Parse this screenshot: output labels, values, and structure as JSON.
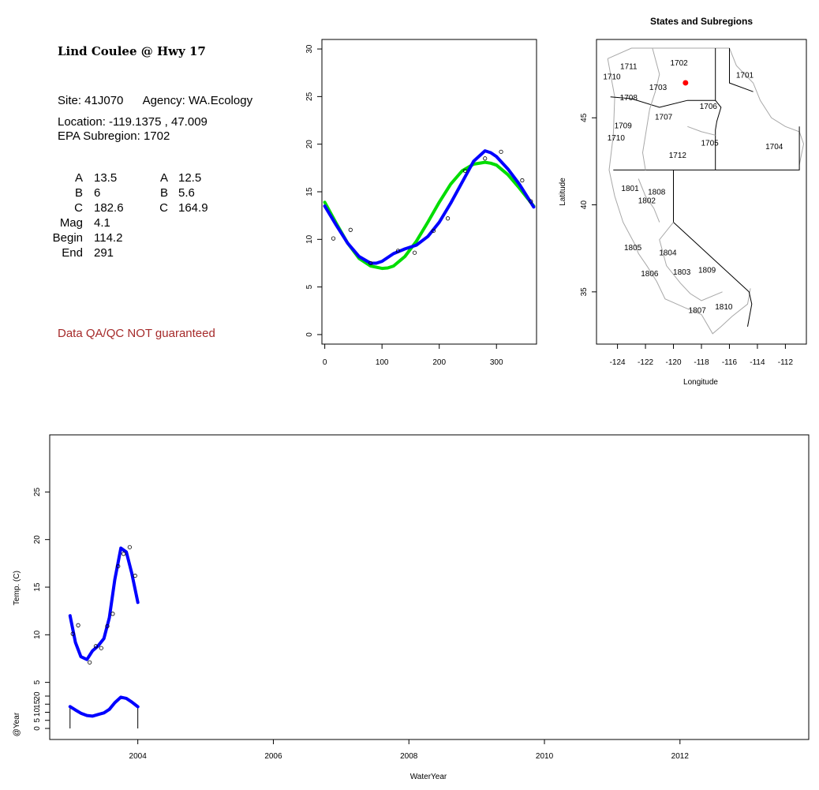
{
  "site": {
    "title": "Lind Coulee @ Hwy 17",
    "site_line": "Site: 41J070      Agency: WA.Ecology",
    "location_line": "Location: -119.1375 , 47.009",
    "subregion_line": "EPA Subregion: 1702",
    "params": {
      "labels": [
        "A",
        "B",
        "C",
        "Mag",
        "Begin",
        "End"
      ],
      "col1": [
        "13.5",
        "6",
        "182.6",
        "4.1",
        "114.2",
        "291"
      ],
      "labels2": [
        "A",
        "B",
        "C"
      ],
      "col2": [
        "12.5",
        "5.6",
        "164.9"
      ]
    },
    "qa_note": "Data QA/QC NOT guaranteed"
  },
  "chart_data": [
    {
      "type": "line",
      "xlim": [
        -5,
        370
      ],
      "ylim": [
        -1,
        31
      ],
      "xticks": [
        0,
        100,
        200,
        300
      ],
      "yticks": [
        0,
        5,
        10,
        15,
        20,
        25,
        30
      ],
      "points": {
        "x": [
          15,
          45,
          80,
          128,
          157,
          190,
          215,
          245,
          280,
          308,
          345,
          360
        ],
        "y": [
          10.1,
          11.0,
          7.5,
          8.8,
          8.6,
          10.9,
          12.2,
          17.2,
          18.5,
          19.2,
          16.2,
          14.0
        ]
      },
      "series": [
        {
          "name": "",
          "color": "#00dd00",
          "x": [
            0,
            20,
            40,
            60,
            80,
            100,
            110,
            120,
            140,
            160,
            180,
            200,
            220,
            240,
            260,
            280,
            290,
            300,
            320,
            340,
            365
          ],
          "y": [
            13.9,
            11.7,
            9.6,
            8.0,
            7.2,
            6.95,
            7.0,
            7.2,
            8.2,
            9.8,
            11.8,
            13.9,
            15.8,
            17.2,
            17.9,
            18.1,
            18.0,
            17.8,
            16.8,
            15.4,
            13.5
          ]
        },
        {
          "name": "",
          "color": "#0000ff",
          "x": [
            0,
            20,
            40,
            60,
            80,
            90,
            100,
            120,
            140,
            160,
            180,
            200,
            220,
            240,
            260,
            280,
            290,
            300,
            320,
            340,
            365
          ],
          "y": [
            13.5,
            11.5,
            9.6,
            8.2,
            7.5,
            7.5,
            7.7,
            8.5,
            9.0,
            9.4,
            10.3,
            11.8,
            13.8,
            16.0,
            18.2,
            19.3,
            19.1,
            18.7,
            17.4,
            15.8,
            13.4
          ]
        }
      ]
    },
    {
      "type": "map",
      "title": "States and Subregions",
      "xlabel": "Longitude",
      "ylabel": "Latitude",
      "xlim": [
        -125.5,
        -110.5
      ],
      "ylim": [
        32,
        49.5
      ],
      "xticks": [
        -124,
        -122,
        -120,
        -118,
        -116,
        -114,
        -112
      ],
      "yticks": [
        35,
        40,
        45
      ],
      "site_point": {
        "lon": -119.1375,
        "lat": 47.009,
        "color": "#ff0000"
      },
      "region_labels": [
        {
          "text": "1702",
          "lon": -119.6,
          "lat": 48.0
        },
        {
          "text": "1711",
          "lon": -123.2,
          "lat": 47.8
        },
        {
          "text": "1710",
          "lon": -124.4,
          "lat": 47.2
        },
        {
          "text": "1701",
          "lon": -114.9,
          "lat": 47.3
        },
        {
          "text": "1703",
          "lon": -121.1,
          "lat": 46.6
        },
        {
          "text": "1708",
          "lon": -123.2,
          "lat": 46.0
        },
        {
          "text": "1706",
          "lon": -117.5,
          "lat": 45.5
        },
        {
          "text": "1707",
          "lon": -120.7,
          "lat": 44.9
        },
        {
          "text": "1709",
          "lon": -123.6,
          "lat": 44.4
        },
        {
          "text": "1710",
          "lon": -124.1,
          "lat": 43.7
        },
        {
          "text": "1705",
          "lon": -117.4,
          "lat": 43.4
        },
        {
          "text": "1704",
          "lon": -112.8,
          "lat": 43.2
        },
        {
          "text": "1712",
          "lon": -119.7,
          "lat": 42.7
        },
        {
          "text": "1801",
          "lon": -123.1,
          "lat": 40.8
        },
        {
          "text": "1808",
          "lon": -121.2,
          "lat": 40.6
        },
        {
          "text": "1802",
          "lon": -121.9,
          "lat": 40.1
        },
        {
          "text": "1805",
          "lon": -122.9,
          "lat": 37.4
        },
        {
          "text": "1804",
          "lon": -120.4,
          "lat": 37.1
        },
        {
          "text": "1806",
          "lon": -121.7,
          "lat": 35.9
        },
        {
          "text": "1803",
          "lon": -119.4,
          "lat": 36.0
        },
        {
          "text": "1809",
          "lon": -117.6,
          "lat": 36.1
        },
        {
          "text": "1807",
          "lon": -118.3,
          "lat": 33.8
        },
        {
          "text": "1810",
          "lon": -116.4,
          "lat": 34.0
        }
      ]
    },
    {
      "type": "line",
      "xlabel": "WaterYear",
      "ylabel": "Temp. (C)",
      "ylabel2": "@Year",
      "xlim": [
        2002.7,
        2013.9
      ],
      "ylim": [
        -1,
        31
      ],
      "xticks": [
        2004,
        2006,
        2008,
        2010,
        2012
      ],
      "yticks": [
        5,
        10,
        15,
        20,
        25
      ],
      "yticks2": [
        0,
        5,
        10,
        15,
        20
      ],
      "points": {
        "x": [
          2003.04,
          2003.12,
          2003.29,
          2003.38,
          2003.46,
          2003.55,
          2003.63,
          2003.71,
          2003.79,
          2003.88,
          2003.96
        ],
        "y": [
          10.1,
          11.0,
          7.1,
          8.8,
          8.6,
          10.9,
          12.2,
          17.2,
          18.5,
          19.2,
          16.2
        ]
      },
      "series": [
        {
          "name": "",
          "color": "#0000ff",
          "x": [
            2003.0,
            2003.08,
            2003.16,
            2003.25,
            2003.33,
            2003.41,
            2003.5,
            2003.58,
            2003.66,
            2003.75,
            2003.83,
            2003.91,
            2004.0
          ],
          "y": [
            12.0,
            9.2,
            7.7,
            7.4,
            8.3,
            8.8,
            9.6,
            11.8,
            15.8,
            19.1,
            18.7,
            16.5,
            13.4
          ]
        }
      ],
      "annual": {
        "x": [
          2003.0,
          2003.08,
          2003.16,
          2003.25,
          2003.33,
          2003.41,
          2003.5,
          2003.58,
          2003.66,
          2003.75,
          2003.83,
          2003.91,
          2004.0
        ],
        "y": [
          13.5,
          11.4,
          9.4,
          8.0,
          7.6,
          8.6,
          9.6,
          11.8,
          15.9,
          19.3,
          18.6,
          16.4,
          13.4
        ]
      }
    }
  ]
}
